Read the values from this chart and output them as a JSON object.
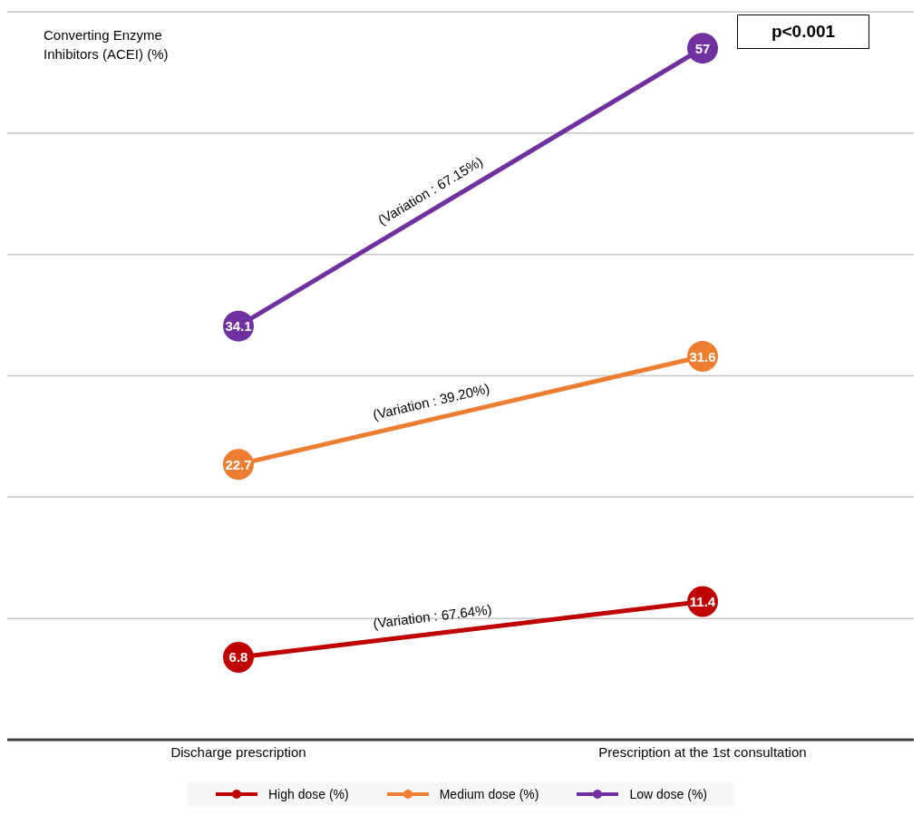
{
  "chart_data": {
    "type": "line",
    "ylabel": "Converting Enzyme Inhibitors (ACEI) (%)",
    "categories": [
      "Discharge prescription",
      "Prescription at the 1st consultation"
    ],
    "series": [
      {
        "name": "High dose (%)",
        "color": "#c00000",
        "values": [
          6.8,
          11.4
        ]
      },
      {
        "name": "Medium dose (%)",
        "color": "#ed7d31",
        "values": [
          22.7,
          31.6
        ]
      },
      {
        "name": "Low dose (%)",
        "color": "#7030a0",
        "values": [
          34.1,
          57
        ]
      }
    ],
    "grid": "y",
    "legend": "bottom",
    "marker": "circle",
    "line_style": "solid",
    "data_labels": true,
    "annotations": [
      "(Variation : 67.15%)",
      "(Variation : 39.20%)",
      "(Variation : 67.64%)",
      "p<0.001"
    ]
  }
}
